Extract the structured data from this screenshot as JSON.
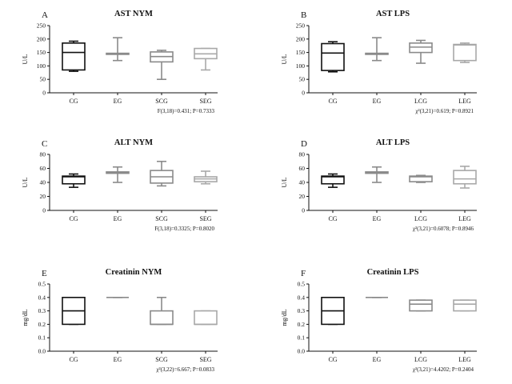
{
  "chart_data": [
    {
      "type": "box",
      "letter": "A",
      "title": "AST NYM",
      "ylabel": "U/L",
      "ylim": [
        0,
        250
      ],
      "yticks": [
        "0",
        "50",
        "100",
        "150",
        "200",
        "250"
      ],
      "categories": [
        "CG",
        "EG",
        "SCG",
        "SEG"
      ],
      "boxes": [
        {
          "min": 80,
          "q1": 85,
          "median": 150,
          "q3": 185,
          "max": 192,
          "color": "#111111"
        },
        {
          "min": 120,
          "q1": 143,
          "median": 145,
          "q3": 147,
          "max": 205,
          "color": "#8a8a8a"
        },
        {
          "min": 50,
          "q1": 115,
          "median": 135,
          "q3": 152,
          "max": 158,
          "color": "#8a8a8a"
        },
        {
          "min": 85,
          "q1": 127,
          "median": 145,
          "q3": 165,
          "max": 165,
          "color": "#a8a8a8"
        }
      ],
      "stat": "F(3,18)=0.431; P=0.7333"
    },
    {
      "type": "box",
      "letter": "B",
      "title": "AST LPS",
      "ylabel": "U/L",
      "ylim": [
        0,
        250
      ],
      "yticks": [
        "0",
        "50",
        "100",
        "150",
        "200",
        "250"
      ],
      "categories": [
        "CG",
        "EG",
        "LCG",
        "LEG"
      ],
      "boxes": [
        {
          "min": 78,
          "q1": 83,
          "median": 148,
          "q3": 183,
          "max": 190,
          "color": "#111111"
        },
        {
          "min": 120,
          "q1": 143,
          "median": 145,
          "q3": 147,
          "max": 205,
          "color": "#8a8a8a"
        },
        {
          "min": 110,
          "q1": 150,
          "median": 170,
          "q3": 185,
          "max": 195,
          "color": "#8a8a8a"
        },
        {
          "min": 113,
          "q1": 120,
          "median": 178,
          "q3": 180,
          "max": 185,
          "color": "#a8a8a8"
        }
      ],
      "stat": "χ²(3,21)=0.619; P=0.8921"
    },
    {
      "type": "box",
      "letter": "C",
      "title": "ALT NYM",
      "ylabel": "U/L",
      "ylim": [
        0,
        80
      ],
      "yticks": [
        "0",
        "20",
        "40",
        "60",
        "80"
      ],
      "categories": [
        "CG",
        "EG",
        "SCG",
        "SEG"
      ],
      "boxes": [
        {
          "min": 33,
          "q1": 38,
          "median": 48,
          "q3": 49,
          "max": 52,
          "color": "#111111"
        },
        {
          "min": 40,
          "q1": 53,
          "median": 54,
          "q3": 55,
          "max": 62,
          "color": "#8a8a8a"
        },
        {
          "min": 35,
          "q1": 39,
          "median": 48,
          "q3": 57,
          "max": 70,
          "color": "#8a8a8a"
        },
        {
          "min": 38,
          "q1": 41,
          "median": 45,
          "q3": 48,
          "max": 56,
          "color": "#a8a8a8"
        }
      ],
      "stat": "F(3,18)=0.3325; P=0.8020"
    },
    {
      "type": "box",
      "letter": "D",
      "title": "ALT LPS",
      "ylabel": "U/L",
      "ylim": [
        0,
        80
      ],
      "yticks": [
        "0",
        "20",
        "40",
        "60",
        "80"
      ],
      "categories": [
        "CG",
        "EG",
        "LCG",
        "LEG"
      ],
      "boxes": [
        {
          "min": 33,
          "q1": 38,
          "median": 48,
          "q3": 49,
          "max": 52,
          "color": "#111111"
        },
        {
          "min": 40,
          "q1": 53,
          "median": 54,
          "q3": 55,
          "max": 62,
          "color": "#8a8a8a"
        },
        {
          "min": 40,
          "q1": 41,
          "median": 48,
          "q3": 49,
          "max": 50,
          "color": "#8a8a8a"
        },
        {
          "min": 32,
          "q1": 38,
          "median": 45,
          "q3": 57,
          "max": 63,
          "color": "#a8a8a8"
        }
      ],
      "stat": "χ²(3,21)=0.6078; P=0.8946"
    },
    {
      "type": "box",
      "letter": "E",
      "title": "Creatinin NYM",
      "ylabel": "mg/dL",
      "ylim": [
        0,
        0.5
      ],
      "yticks": [
        "0.0",
        "0.1",
        "0.2",
        "0.3",
        "0.4",
        "0.5"
      ],
      "categories": [
        "CG",
        "EG",
        "SCG",
        "SEG"
      ],
      "boxes": [
        {
          "min": 0.2,
          "q1": 0.2,
          "median": 0.3,
          "q3": 0.4,
          "max": 0.4,
          "color": "#111111"
        },
        {
          "min": 0.4,
          "q1": 0.4,
          "median": 0.4,
          "q3": 0.4,
          "max": 0.4,
          "color": "#8a8a8a"
        },
        {
          "min": 0.2,
          "q1": 0.2,
          "median": 0.2,
          "q3": 0.3,
          "max": 0.4,
          "color": "#8a8a8a"
        },
        {
          "min": 0.2,
          "q1": 0.2,
          "median": 0.2,
          "q3": 0.3,
          "max": 0.3,
          "color": "#a8a8a8"
        }
      ],
      "stat": "χ²(3,22)=6.667; P=0.0833"
    },
    {
      "type": "box",
      "letter": "F",
      "title": "Creatinin LPS",
      "ylabel": "mg/dL",
      "ylim": [
        0,
        0.5
      ],
      "yticks": [
        "0.0",
        "0.1",
        "0.2",
        "0.3",
        "0.4",
        "0.5"
      ],
      "categories": [
        "CG",
        "EG",
        "LCG",
        "LEG"
      ],
      "boxes": [
        {
          "min": 0.2,
          "q1": 0.2,
          "median": 0.3,
          "q3": 0.4,
          "max": 0.4,
          "color": "#111111"
        },
        {
          "min": 0.4,
          "q1": 0.4,
          "median": 0.4,
          "q3": 0.4,
          "max": 0.4,
          "color": "#8a8a8a"
        },
        {
          "min": 0.3,
          "q1": 0.3,
          "median": 0.35,
          "q3": 0.38,
          "max": 0.38,
          "color": "#8a8a8a"
        },
        {
          "min": 0.3,
          "q1": 0.3,
          "median": 0.35,
          "q3": 0.38,
          "max": 0.38,
          "color": "#a8a8a8"
        }
      ],
      "stat": "χ²(3,21)=4.4202; P=0.2404"
    }
  ]
}
